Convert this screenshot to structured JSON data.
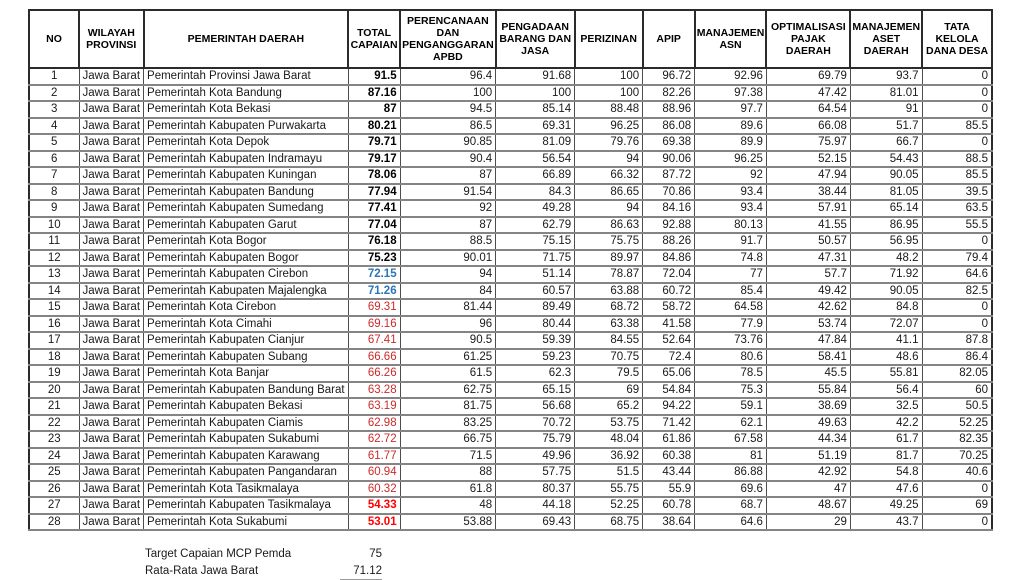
{
  "colors": {
    "total_high": "#000000",
    "total_mid": "#2e75b6",
    "total_low": "#cc2a2a",
    "total_critical": "#ff0000",
    "grid_dark": "#2b2b2b",
    "grid_gray": "#848484"
  },
  "table": {
    "columns": [
      {
        "key": "no",
        "label": "NO"
      },
      {
        "key": "wilayah",
        "label": "WILAYAH\nPROVINSI"
      },
      {
        "key": "pemda",
        "label": "PEMERINTAH DAERAH"
      },
      {
        "key": "total",
        "label": "TOTAL\nCAPAIAN"
      },
      {
        "key": "perencanaan",
        "label": "PERENCANAAN\nDAN\nPENGANGGARAN\nAPBD"
      },
      {
        "key": "pengadaan",
        "label": "PENGADAAN\nBARANG DAN\nJASA"
      },
      {
        "key": "perizinan",
        "label": "PERIZINAN"
      },
      {
        "key": "apip",
        "label": "APIP"
      },
      {
        "key": "asn",
        "label": "MANAJEMEN\nASN"
      },
      {
        "key": "pajak",
        "label": "OPTIMALISASI\nPAJAK DAERAH"
      },
      {
        "key": "aset",
        "label": "MANAJEMEN\nASET DAERAH"
      },
      {
        "key": "dana",
        "label": "TATA KELOLA\nDANA DESA"
      }
    ],
    "rows": [
      {
        "no": "1",
        "wilayah": "Jawa Barat",
        "pemda": "Pemerintah Provinsi Jawa Barat",
        "total": "91.5",
        "style": "black",
        "values": [
          "96.4",
          "91.68",
          "100",
          "96.72",
          "92.96",
          "69.79",
          "93.7",
          "0"
        ]
      },
      {
        "no": "2",
        "wilayah": "Jawa Barat",
        "pemda": "Pemerintah Kota Bandung",
        "total": "87.16",
        "style": "black",
        "values": [
          "100",
          "100",
          "100",
          "82.26",
          "97.38",
          "47.42",
          "81.01",
          "0"
        ]
      },
      {
        "no": "3",
        "wilayah": "Jawa Barat",
        "pemda": "Pemerintah Kota Bekasi",
        "total": "87",
        "style": "black",
        "values": [
          "94.5",
          "85.14",
          "88.48",
          "88.96",
          "97.7",
          "64.54",
          "91",
          "0"
        ]
      },
      {
        "no": "4",
        "wilayah": "Jawa Barat",
        "pemda": "Pemerintah Kabupaten Purwakarta",
        "total": "80.21",
        "style": "black",
        "values": [
          "86.5",
          "69.31",
          "96.25",
          "86.08",
          "89.6",
          "66.08",
          "51.7",
          "85.5"
        ]
      },
      {
        "no": "5",
        "wilayah": "Jawa Barat",
        "pemda": "Pemerintah Kota Depok",
        "total": "79.71",
        "style": "black",
        "values": [
          "90.85",
          "81.09",
          "79.76",
          "69.38",
          "89.9",
          "75.97",
          "66.7",
          "0"
        ]
      },
      {
        "no": "6",
        "wilayah": "Jawa Barat",
        "pemda": "Pemerintah Kabupaten Indramayu",
        "total": "79.17",
        "style": "black",
        "values": [
          "90.4",
          "56.54",
          "94",
          "90.06",
          "96.25",
          "52.15",
          "54.43",
          "88.5"
        ]
      },
      {
        "no": "7",
        "wilayah": "Jawa Barat",
        "pemda": "Pemerintah Kabupaten Kuningan",
        "total": "78.06",
        "style": "black",
        "values": [
          "87",
          "66.89",
          "66.32",
          "87.72",
          "92",
          "47.94",
          "90.05",
          "85.5"
        ]
      },
      {
        "no": "8",
        "wilayah": "Jawa Barat",
        "pemda": "Pemerintah Kabupaten Bandung",
        "total": "77.94",
        "style": "black",
        "values": [
          "91.54",
          "84.3",
          "86.65",
          "70.86",
          "93.4",
          "38.44",
          "81.05",
          "39.5"
        ]
      },
      {
        "no": "9",
        "wilayah": "Jawa Barat",
        "pemda": "Pemerintah Kabupaten Sumedang",
        "total": "77.41",
        "style": "black",
        "values": [
          "92",
          "49.28",
          "94",
          "84.16",
          "93.4",
          "57.91",
          "65.14",
          "63.5"
        ]
      },
      {
        "no": "10",
        "wilayah": "Jawa Barat",
        "pemda": "Pemerintah Kabupaten Garut",
        "total": "77.04",
        "style": "black",
        "values": [
          "87",
          "62.79",
          "86.63",
          "92.88",
          "80.13",
          "41.55",
          "86.95",
          "55.5"
        ]
      },
      {
        "no": "11",
        "wilayah": "Jawa Barat",
        "pemda": "Pemerintah Kota Bogor",
        "total": "76.18",
        "style": "black",
        "values": [
          "88.5",
          "75.15",
          "75.75",
          "88.26",
          "91.7",
          "50.57",
          "56.95",
          "0"
        ]
      },
      {
        "no": "12",
        "wilayah": "Jawa Barat",
        "pemda": "Pemerintah Kabupaten Bogor",
        "total": "75.23",
        "style": "black",
        "values": [
          "90.01",
          "71.75",
          "89.97",
          "84.86",
          "74.8",
          "47.31",
          "48.2",
          "79.4"
        ]
      },
      {
        "no": "13",
        "wilayah": "Jawa Barat",
        "pemda": "Pemerintah Kabupaten Cirebon",
        "total": "72.15",
        "style": "blue",
        "values": [
          "94",
          "51.14",
          "78.87",
          "72.04",
          "77",
          "57.7",
          "71.92",
          "64.6"
        ]
      },
      {
        "no": "14",
        "wilayah": "Jawa Barat",
        "pemda": "Pemerintah Kabupaten Majalengka",
        "total": "71.26",
        "style": "blue",
        "values": [
          "84",
          "60.57",
          "63.88",
          "60.72",
          "85.4",
          "49.42",
          "90.05",
          "82.5"
        ]
      },
      {
        "no": "15",
        "wilayah": "Jawa Barat",
        "pemda": "Pemerintah Kota Cirebon",
        "total": "69.31",
        "style": "red",
        "values": [
          "81.44",
          "89.49",
          "68.72",
          "58.72",
          "64.58",
          "42.62",
          "84.8",
          "0"
        ]
      },
      {
        "no": "16",
        "wilayah": "Jawa Barat",
        "pemda": "Pemerintah Kota Cimahi",
        "total": "69.16",
        "style": "red",
        "values": [
          "96",
          "80.44",
          "63.38",
          "41.58",
          "77.9",
          "53.74",
          "72.07",
          "0"
        ]
      },
      {
        "no": "17",
        "wilayah": "Jawa Barat",
        "pemda": "Pemerintah Kabupaten Cianjur",
        "total": "67.41",
        "style": "red",
        "values": [
          "90.5",
          "59.39",
          "84.55",
          "52.64",
          "73.76",
          "47.84",
          "41.1",
          "87.8"
        ]
      },
      {
        "no": "18",
        "wilayah": "Jawa Barat",
        "pemda": "Pemerintah Kabupaten Subang",
        "total": "66.66",
        "style": "red",
        "values": [
          "61.25",
          "59.23",
          "70.75",
          "72.4",
          "80.6",
          "58.41",
          "48.6",
          "86.4"
        ]
      },
      {
        "no": "19",
        "wilayah": "Jawa Barat",
        "pemda": "Pemerintah Kota Banjar",
        "total": "66.26",
        "style": "red",
        "values": [
          "61.5",
          "62.3",
          "79.5",
          "65.06",
          "78.5",
          "45.5",
          "55.81",
          "82.05"
        ]
      },
      {
        "no": "20",
        "wilayah": "Jawa Barat",
        "pemda": "Pemerintah Kabupaten Bandung Barat",
        "total": "63.28",
        "style": "red",
        "values": [
          "62.75",
          "65.15",
          "69",
          "54.84",
          "75.3",
          "55.84",
          "56.4",
          "60"
        ]
      },
      {
        "no": "21",
        "wilayah": "Jawa Barat",
        "pemda": "Pemerintah Kabupaten Bekasi",
        "total": "63.19",
        "style": "red",
        "values": [
          "81.75",
          "56.68",
          "65.2",
          "94.22",
          "59.1",
          "38.69",
          "32.5",
          "50.5"
        ]
      },
      {
        "no": "22",
        "wilayah": "Jawa Barat",
        "pemda": "Pemerintah Kabupaten Ciamis",
        "total": "62.98",
        "style": "red",
        "values": [
          "83.25",
          "70.72",
          "53.75",
          "71.42",
          "62.1",
          "49.63",
          "42.2",
          "52.25"
        ]
      },
      {
        "no": "23",
        "wilayah": "Jawa Barat",
        "pemda": "Pemerintah Kabupaten Sukabumi",
        "total": "62.72",
        "style": "red",
        "values": [
          "66.75",
          "75.79",
          "48.04",
          "61.86",
          "67.58",
          "44.34",
          "61.7",
          "82.35"
        ]
      },
      {
        "no": "24",
        "wilayah": "Jawa Barat",
        "pemda": "Pemerintah Kabupaten Karawang",
        "total": "61.77",
        "style": "red",
        "values": [
          "71.5",
          "49.96",
          "36.92",
          "60.38",
          "81",
          "51.19",
          "81.7",
          "70.25"
        ]
      },
      {
        "no": "25",
        "wilayah": "Jawa Barat",
        "pemda": "Pemerintah Kabupaten Pangandaran",
        "total": "60.94",
        "style": "red",
        "values": [
          "88",
          "57.75",
          "51.5",
          "43.44",
          "86.88",
          "42.92",
          "54.8",
          "40.6"
        ]
      },
      {
        "no": "26",
        "wilayah": "Jawa Barat",
        "pemda": "Pemerintah Kota Tasikmalaya",
        "total": "60.32",
        "style": "red",
        "values": [
          "61.8",
          "80.37",
          "55.75",
          "55.9",
          "69.6",
          "47",
          "47.6",
          "0"
        ]
      },
      {
        "no": "27",
        "wilayah": "Jawa Barat",
        "pemda": "Pemerintah Kabupaten Tasikmalaya",
        "total": "54.33",
        "style": "redbold",
        "values": [
          "48",
          "44.18",
          "52.25",
          "60.78",
          "68.7",
          "48.67",
          "49.25",
          "69"
        ]
      },
      {
        "no": "28",
        "wilayah": "Jawa Barat",
        "pemda": "Pemerintah Kota Sukabumi",
        "total": "53.01",
        "style": "redbold",
        "values": [
          "53.88",
          "69.43",
          "68.75",
          "38.64",
          "64.6",
          "29",
          "43.7",
          "0"
        ]
      }
    ]
  },
  "footer": {
    "target_label": "Target Capaian MCP Pemda",
    "target_value": "75",
    "average_label": "Rata-Rata Jawa Barat",
    "average_value": "71.12"
  }
}
